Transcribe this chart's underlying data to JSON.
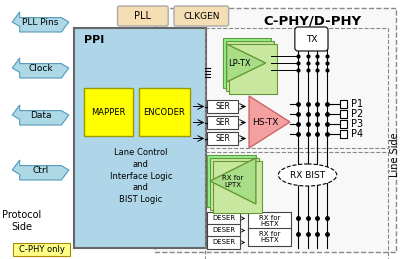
{
  "bg_color": "#ffffff",
  "title": "C-PHY/D-PHY",
  "ppi_bg": "#aed6e8",
  "ppi_border": "#666666",
  "yellow_box": "#ffff00",
  "yellow_border": "#999900",
  "green_block": "#90ee90",
  "green_dark": "#c8e8a0",
  "green_border": "#669933",
  "pink_block": "#f4a0a0",
  "pink_border": "#cc6666",
  "pll_bg": "#f5deb3",
  "pll_border": "#aaaaaa",
  "ser_bg": "#ffffff",
  "ser_border": "#444444",
  "arrow_bg": "#add8e6",
  "arrow_border": "#5599bb",
  "outer_bg": "#f8f8f8",
  "outer_border": "#888888",
  "tx_border": "#888888",
  "rx_border": "#888888",
  "labels_left": [
    "PLL Pins",
    "Clock",
    "Data",
    "Ctrl"
  ],
  "labels_right": [
    "P1",
    "P2",
    "P3",
    "P4"
  ],
  "protocol_side": "Protocol\nSide",
  "line_side": "Line Side",
  "c_phy_only": "C-PHY only"
}
